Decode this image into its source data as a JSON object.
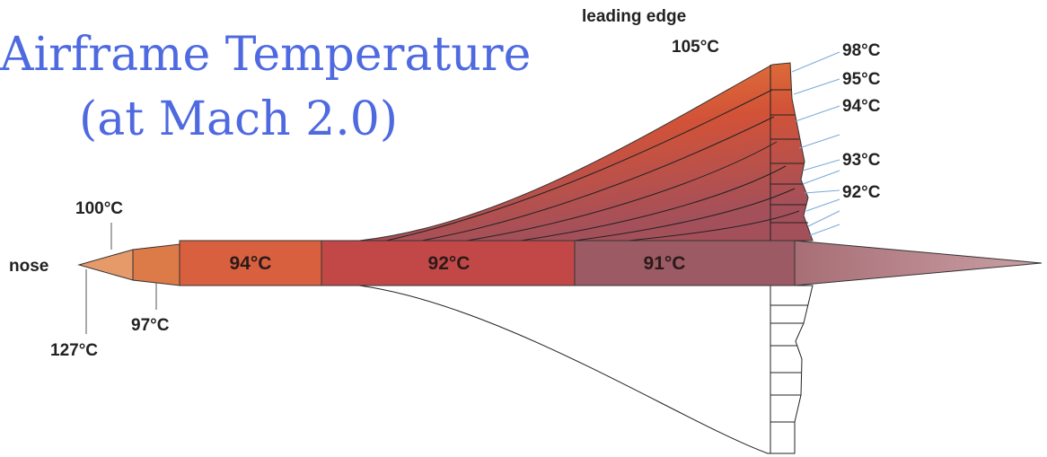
{
  "title": {
    "line1": "Airframe Temperature",
    "line2": "(at Mach 2.0)"
  },
  "wing_labels": {
    "leading_edge": "leading edge",
    "leading_edge_temp": "105°C",
    "t1": "98°C",
    "t2": "95°C",
    "t3": "94°C",
    "t4": "93°C",
    "t5": "92°C"
  },
  "nose_labels": {
    "nose": "nose",
    "t_upper": "100°C",
    "t_lower": "97°C",
    "t_tip": "127°C"
  },
  "fuselage_sections": [
    "94°C",
    "92°C",
    "91°C"
  ]
}
